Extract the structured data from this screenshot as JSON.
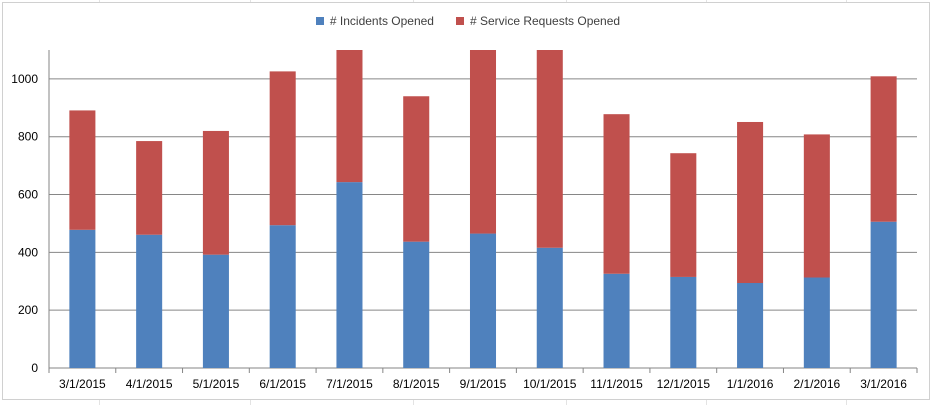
{
  "chart_data": {
    "type": "bar",
    "stacked": true,
    "title": "",
    "xlabel": "",
    "ylabel": "",
    "categories": [
      "3/1/2015",
      "4/1/2015",
      "5/1/2015",
      "6/1/2015",
      "7/1/2015",
      "8/1/2015",
      "9/1/2015",
      "10/1/2015",
      "11/1/2015",
      "12/1/2015",
      "1/1/2016",
      "2/1/2016",
      "3/1/2016"
    ],
    "series": [
      {
        "name": "# Incidents Opened",
        "color": "#4f81bd",
        "values": [
          478,
          461,
          392,
          494,
          643,
          437,
          465,
          416,
          326,
          315,
          294,
          313,
          506
        ]
      },
      {
        "name": "# Service Requests Opened",
        "color": "#c0504d",
        "values": [
          413,
          324,
          428,
          532,
          457,
          503,
          635,
          684,
          552,
          428,
          557,
          495,
          503
        ]
      }
    ],
    "ylim": [
      0,
      1100
    ],
    "yticks": [
      0,
      200,
      400,
      600,
      800,
      1000
    ],
    "grid": true,
    "legend_position": "top"
  }
}
